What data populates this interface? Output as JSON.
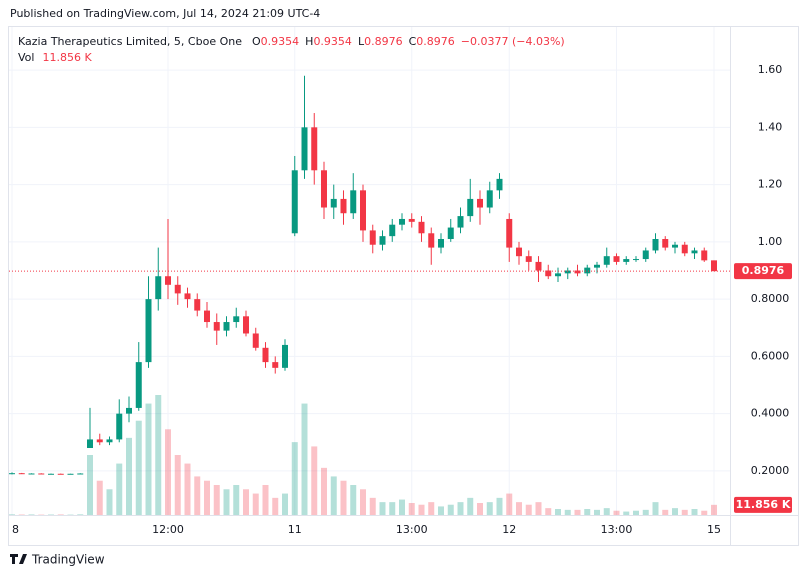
{
  "chart_data": {
    "type": "candlestick",
    "published": "Published on TradingView.com, Jul 14, 2024 21:09 UTC-4",
    "title": "Kazia Therapeutics Limited, 5, Cboe One",
    "ohlc_legend": [
      {
        "key": "O",
        "value": "0.9354"
      },
      {
        "key": "H",
        "value": "0.9354"
      },
      {
        "key": "L",
        "value": "0.8976"
      },
      {
        "key": "C",
        "value": "0.8976"
      }
    ],
    "change": "−0.0377 (−4.03%)",
    "volume_legend": {
      "key": "Vol",
      "value": "11.856 K"
    },
    "last_price_label": "0.8976",
    "brand": "TradingView",
    "up_color": "#089981",
    "down_color": "#f23645",
    "categories": [
      "8",
      null,
      null,
      null,
      null,
      null,
      null,
      null,
      null,
      null,
      null,
      null,
      null,
      null,
      null,
      null,
      "12:00",
      null,
      null,
      null,
      null,
      null,
      null,
      null,
      null,
      null,
      null,
      null,
      null,
      "11",
      null,
      null,
      null,
      null,
      null,
      null,
      null,
      null,
      null,
      null,
      null,
      "13:00",
      null,
      null,
      null,
      null,
      null,
      null,
      null,
      null,
      null,
      "12",
      null,
      null,
      null,
      null,
      null,
      null,
      null,
      null,
      null,
      null,
      "13:00",
      null,
      null,
      null,
      null,
      null,
      null,
      null,
      null,
      null,
      "15"
    ],
    "open": [
      0.19,
      0.192,
      0.19,
      0.191,
      0.19,
      0.19,
      0.189,
      0.19,
      0.28,
      0.31,
      0.3,
      0.31,
      0.4,
      0.42,
      0.58,
      0.8,
      0.88,
      0.85,
      0.82,
      0.8,
      0.76,
      0.72,
      0.69,
      0.72,
      0.74,
      0.68,
      0.63,
      0.58,
      0.56,
      1.03,
      1.25,
      1.4,
      1.25,
      1.12,
      1.15,
      1.1,
      1.18,
      1.04,
      0.99,
      1.02,
      1.06,
      1.08,
      1.07,
      1.03,
      0.98,
      1.01,
      1.05,
      1.09,
      1.15,
      1.12,
      1.18,
      1.08,
      0.98,
      0.95,
      0.93,
      0.9,
      0.88,
      0.89,
      0.9,
      0.89,
      0.91,
      0.92,
      0.95,
      0.93,
      0.94,
      0.94,
      0.97,
      1.01,
      0.98,
      0.99,
      0.96,
      0.97,
      0.9354
    ],
    "high": [
      0.195,
      0.193,
      0.192,
      0.192,
      0.191,
      0.191,
      0.19,
      0.192,
      0.42,
      0.33,
      0.32,
      0.45,
      0.46,
      0.65,
      0.88,
      0.98,
      1.08,
      0.88,
      0.84,
      0.82,
      0.79,
      0.75,
      0.74,
      0.77,
      0.76,
      0.7,
      0.65,
      0.6,
      0.66,
      1.3,
      1.58,
      1.45,
      1.28,
      1.2,
      1.18,
      1.24,
      1.2,
      1.06,
      1.04,
      1.08,
      1.1,
      1.1,
      1.09,
      1.05,
      1.03,
      1.08,
      1.12,
      1.22,
      1.18,
      1.21,
      1.24,
      1.1,
      1.0,
      0.97,
      0.95,
      0.92,
      0.91,
      0.91,
      0.92,
      0.92,
      0.93,
      0.98,
      0.96,
      0.95,
      0.95,
      0.98,
      1.03,
      1.02,
      1.0,
      1.0,
      0.98,
      0.98,
      0.9354
    ],
    "low": [
      0.188,
      0.19,
      0.189,
      0.19,
      0.189,
      0.188,
      0.188,
      0.189,
      0.28,
      0.29,
      0.29,
      0.3,
      0.37,
      0.41,
      0.56,
      0.76,
      0.8,
      0.78,
      0.77,
      0.74,
      0.7,
      0.64,
      0.67,
      0.7,
      0.67,
      0.62,
      0.56,
      0.54,
      0.55,
      1.02,
      1.22,
      1.2,
      1.08,
      1.08,
      1.06,
      1.08,
      1.0,
      0.96,
      0.97,
      1.0,
      1.04,
      1.05,
      1.0,
      0.92,
      0.96,
      1.0,
      1.03,
      1.07,
      1.06,
      1.1,
      1.15,
      0.93,
      0.92,
      0.9,
      0.86,
      0.87,
      0.86,
      0.87,
      0.88,
      0.88,
      0.89,
      0.91,
      0.92,
      0.92,
      0.93,
      0.93,
      0.96,
      0.97,
      0.96,
      0.95,
      0.94,
      0.93,
      0.8976
    ],
    "close": [
      0.192,
      0.19,
      0.191,
      0.19,
      0.19,
      0.189,
      0.19,
      0.191,
      0.31,
      0.3,
      0.31,
      0.4,
      0.42,
      0.58,
      0.8,
      0.88,
      0.85,
      0.82,
      0.8,
      0.76,
      0.72,
      0.69,
      0.72,
      0.74,
      0.68,
      0.63,
      0.58,
      0.56,
      0.64,
      1.25,
      1.4,
      1.25,
      1.12,
      1.15,
      1.1,
      1.18,
      1.04,
      0.99,
      1.02,
      1.06,
      1.08,
      1.07,
      1.03,
      0.98,
      1.01,
      1.05,
      1.09,
      1.15,
      1.12,
      1.18,
      1.22,
      0.98,
      0.95,
      0.93,
      0.9,
      0.88,
      0.89,
      0.9,
      0.89,
      0.91,
      0.92,
      0.95,
      0.93,
      0.94,
      0.94,
      0.97,
      1.01,
      0.98,
      0.99,
      0.96,
      0.97,
      0.9354,
      0.8976
    ],
    "volume": [
      800,
      600,
      700,
      500,
      600,
      700,
      500,
      800,
      70000,
      40000,
      30000,
      60000,
      90000,
      110000,
      130000,
      140000,
      100000,
      70000,
      60000,
      45000,
      40000,
      35000,
      30000,
      35000,
      30000,
      25000,
      35000,
      20000,
      25000,
      85000,
      130000,
      80000,
      55000,
      45000,
      40000,
      35000,
      30000,
      20000,
      15000,
      15000,
      18000,
      14000,
      12000,
      15000,
      10000,
      12000,
      15000,
      20000,
      14000,
      15000,
      20000,
      25000,
      15000,
      12000,
      15000,
      8000,
      7000,
      6000,
      6000,
      7000,
      6000,
      8000,
      5000,
      4000,
      5000,
      6000,
      15000,
      6000,
      8000,
      6000,
      7000,
      5000,
      11856
    ],
    "ylim": [
      0.046,
      1.747
    ],
    "yticks": [
      {
        "value": 0.2,
        "label": "0.2000"
      },
      {
        "value": 0.4,
        "label": "0.4000"
      },
      {
        "value": 0.6,
        "label": "0.6000"
      },
      {
        "value": 0.8,
        "label": "0.8000"
      },
      {
        "value": 1.0,
        "label": "1.00"
      },
      {
        "value": 1.2,
        "label": "1.20"
      },
      {
        "value": 1.4,
        "label": "1.40"
      },
      {
        "value": 1.6,
        "label": "1.60"
      }
    ],
    "grid": true
  }
}
